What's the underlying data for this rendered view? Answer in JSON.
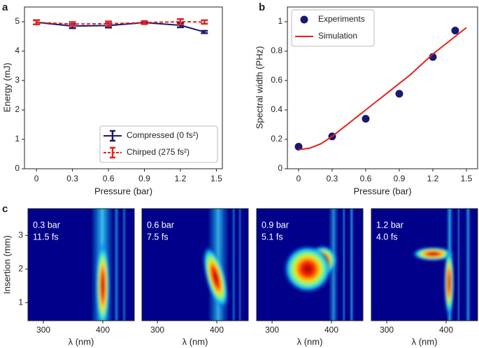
{
  "chart_data": [
    {
      "type": "line",
      "panel_label": "a",
      "xlabel": "Pressure (bar)",
      "ylabel": "Energy (mJ)",
      "x": [
        0,
        0.3,
        0.6,
        0.9,
        1.2,
        1.4
      ],
      "series": [
        {
          "name": "Compressed (0 fs²)",
          "color": "#191970",
          "dash": false,
          "values": [
            4.98,
            4.85,
            4.87,
            4.97,
            4.88,
            4.65
          ],
          "errors": [
            0.07,
            0.07,
            0.07,
            0.05,
            0.07,
            0.04
          ]
        },
        {
          "name": "Chirped (275 fs²)",
          "color": "#e8211c",
          "dash": true,
          "values": [
            4.98,
            4.92,
            4.93,
            4.97,
            5.0,
            4.99
          ],
          "errors": [
            0.07,
            0.07,
            0.08,
            0.05,
            0.09,
            0.06
          ]
        }
      ],
      "xlim": [
        -0.1,
        1.55
      ],
      "ylim": [
        0,
        5.5
      ],
      "xticks": [
        0,
        0.3,
        0.6,
        0.9,
        1.2,
        1.5
      ],
      "yticks": [
        0,
        1,
        2,
        3,
        4,
        5
      ],
      "legend": "lower right"
    },
    {
      "type": "line",
      "panel_label": "b",
      "xlabel": "Pressure (bar)",
      "ylabel": "Spectral width (PHz)",
      "series": [
        {
          "name": "Experiments",
          "type": "scatter",
          "color": "#191970",
          "x": [
            0,
            0.3,
            0.6,
            0.9,
            1.2,
            1.4
          ],
          "values": [
            0.15,
            0.22,
            0.34,
            0.51,
            0.76,
            0.94
          ]
        },
        {
          "name": "Simulation",
          "type": "line",
          "color": "#e8211c",
          "x": [
            0,
            0.1,
            0.2,
            0.3,
            0.4,
            0.5,
            0.6,
            0.7,
            0.8,
            0.9,
            1.0,
            1.1,
            1.2,
            1.3,
            1.4,
            1.5
          ],
          "values": [
            0.13,
            0.14,
            0.17,
            0.22,
            0.28,
            0.34,
            0.4,
            0.46,
            0.52,
            0.58,
            0.64,
            0.71,
            0.78,
            0.84,
            0.9,
            0.96
          ]
        }
      ],
      "xlim": [
        -0.1,
        1.6
      ],
      "ylim": [
        0,
        1.1
      ],
      "xticks": [
        0,
        0.3,
        0.6,
        0.9,
        1.2,
        1.5
      ],
      "yticks": [
        0,
        0.2,
        0.4,
        0.6,
        0.8,
        1.0
      ],
      "legend": "upper left"
    },
    {
      "type": "heatmap",
      "panel_label": "c",
      "xlabel": "λ (nm)",
      "ylabel": "Insertion (mm)",
      "panels": [
        {
          "pressure": "0.3 bar",
          "duration": "11.5 fs"
        },
        {
          "pressure": "0.6 bar",
          "duration": "7.5 fs"
        },
        {
          "pressure": "0.9 bar",
          "duration": "5.1 fs"
        },
        {
          "pressure": "1.2 bar",
          "duration": "4.0 fs"
        }
      ],
      "xlim": [
        274,
        453
      ],
      "ylim": [
        0.46,
        3.8
      ],
      "xticks": [
        300,
        400
      ],
      "yticks": [
        1,
        2,
        3
      ]
    }
  ]
}
